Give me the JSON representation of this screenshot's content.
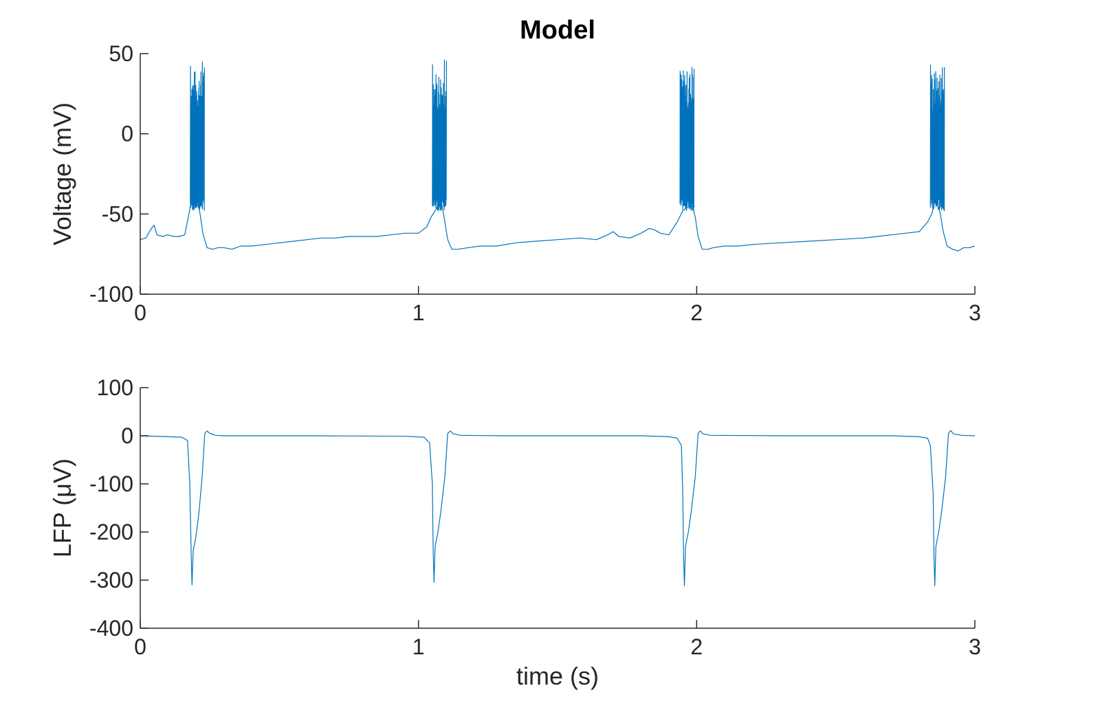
{
  "colors": {
    "trace": "#0072BD",
    "axis": "#262626",
    "background": "#ffffff"
  },
  "chart_data": [
    {
      "type": "line",
      "title": "Model",
      "xlabel": "",
      "ylabel": "Voltage (mV)",
      "xlim": [
        0,
        3
      ],
      "ylim": [
        -100,
        50
      ],
      "xticks": [
        0,
        1,
        2,
        3
      ],
      "xtick_labels": [
        "0",
        "1",
        "2",
        "3"
      ],
      "yticks": [
        -100,
        -50,
        0,
        50
      ],
      "ytick_labels": [
        "-100",
        "-50",
        "0",
        "50"
      ],
      "grid": false,
      "series": [
        {
          "x": [
            0,
            0.02,
            0.04,
            0.05,
            0.06,
            0.08,
            0.1,
            0.12,
            0.14,
            0.16,
            0.175,
            0.185,
            0.195,
            0.205,
            0.215,
            0.225,
            0.24,
            0.26,
            0.28,
            0.3,
            0.33,
            0.36,
            0.4,
            0.45,
            0.5,
            0.55,
            0.6,
            0.65,
            0.7,
            0.75,
            0.8,
            0.85,
            0.9,
            0.95,
            1.0,
            1.03,
            1.045,
            1.06,
            1.075,
            1.085,
            1.095,
            1.105,
            1.12,
            1.14,
            1.18,
            1.22,
            1.28,
            1.35,
            1.42,
            1.5,
            1.58,
            1.64,
            1.68,
            1.7,
            1.72,
            1.76,
            1.8,
            1.83,
            1.85,
            1.87,
            1.9,
            1.93,
            1.95,
            1.965,
            1.975,
            1.985,
            1.995,
            2.005,
            2.02,
            2.04,
            2.06,
            2.1,
            2.15,
            2.2,
            2.3,
            2.4,
            2.5,
            2.6,
            2.65,
            2.7,
            2.75,
            2.8,
            2.83,
            2.845,
            2.855,
            2.865,
            2.875,
            2.885,
            2.9,
            2.92,
            2.94,
            2.96,
            2.98,
            3.0
          ],
          "y": [
            -66,
            -65,
            -59,
            -57,
            -63,
            -64,
            -63,
            -64,
            -64,
            -63,
            -50,
            -40,
            -38,
            -40,
            -50,
            -62,
            -71,
            -72,
            -71,
            -71,
            -72,
            -70,
            -70,
            -69,
            -68,
            -67,
            -66,
            -65,
            -65,
            -64,
            -64,
            -64,
            -63,
            -62,
            -62,
            -58,
            -52,
            -48,
            -44,
            -45,
            -55,
            -66,
            -72,
            -72,
            -71,
            -70,
            -70,
            -68,
            -67,
            -66,
            -65,
            -66,
            -63,
            -61,
            -64,
            -65,
            -62,
            -59,
            -60,
            -62,
            -63,
            -55,
            -48,
            -46,
            -45,
            -45,
            -52,
            -64,
            -72,
            -72,
            -71,
            -70,
            -70,
            -69,
            -68,
            -67,
            -66,
            -65,
            -64,
            -63,
            -62,
            -61,
            -55,
            -50,
            -43,
            -44,
            -49,
            -60,
            -70,
            -72,
            -73,
            -71,
            -71,
            -70
          ]
        }
      ],
      "bursts": [
        {
          "start": 0.18,
          "end": 0.23,
          "peak": 48
        },
        {
          "start": 1.05,
          "end": 1.1,
          "peak": 47
        },
        {
          "start": 1.94,
          "end": 1.99,
          "peak": 47
        },
        {
          "start": 2.84,
          "end": 2.89,
          "peak": 47
        }
      ]
    },
    {
      "type": "line",
      "title": "",
      "xlabel": "time (s)",
      "ylabel": "LFP (μV)",
      "xlim": [
        0,
        3
      ],
      "ylim": [
        -400,
        100
      ],
      "xticks": [
        0,
        1,
        2,
        3
      ],
      "xtick_labels": [
        "0",
        "1",
        "2",
        "3"
      ],
      "yticks": [
        -400,
        -300,
        -200,
        -100,
        0,
        100
      ],
      "ytick_labels": [
        "-400",
        "-300",
        "-200",
        "-100",
        "0",
        "100"
      ],
      "grid": false,
      "series": [
        {
          "x": [
            0,
            0.1,
            0.15,
            0.17,
            0.178,
            0.183,
            0.186,
            0.19,
            0.2,
            0.21,
            0.222,
            0.232,
            0.24,
            0.25,
            0.27,
            0.3,
            0.6,
            0.95,
            1.02,
            1.04,
            1.05,
            1.053,
            1.056,
            1.06,
            1.07,
            1.08,
            1.095,
            1.105,
            1.115,
            1.125,
            1.15,
            1.3,
            1.8,
            1.9,
            1.93,
            1.945,
            1.95,
            1.953,
            1.956,
            1.96,
            1.97,
            1.98,
            1.995,
            2.005,
            2.013,
            2.023,
            2.05,
            2.3,
            2.7,
            2.8,
            2.83,
            2.84,
            2.85,
            2.853,
            2.856,
            2.86,
            2.87,
            2.88,
            2.895,
            2.905,
            2.913,
            2.923,
            2.95,
            3.0
          ],
          "y": [
            0,
            -2,
            -3,
            -10,
            -100,
            -245,
            -310,
            -240,
            -210,
            -165,
            -90,
            5,
            10,
            5,
            1,
            0,
            0,
            -1,
            -3,
            -15,
            -100,
            -240,
            -305,
            -230,
            -200,
            -160,
            -85,
            5,
            10,
            4,
            1,
            0,
            0,
            -2,
            -5,
            -20,
            -120,
            -250,
            -312,
            -230,
            -200,
            -160,
            -85,
            5,
            10,
            4,
            1,
            0,
            0,
            -2,
            -5,
            -20,
            -120,
            -250,
            -312,
            -230,
            -200,
            -160,
            -85,
            5,
            11,
            4,
            1,
            0
          ]
        }
      ]
    }
  ]
}
